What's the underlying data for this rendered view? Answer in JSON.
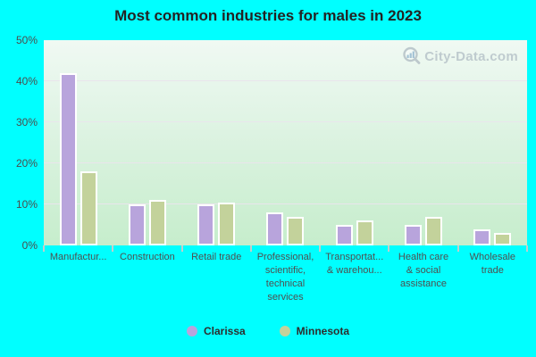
{
  "title": "Most common industries for males in 2023",
  "watermark": "City-Data.com",
  "colors": {
    "background": "#00ffff",
    "plot_gradient_top": "#f0f9f3",
    "plot_gradient_bottom": "#c6edcc",
    "gridline": "#e9e5ec",
    "bar_border": "#ffffff",
    "clarissa": "#b8a4dc",
    "minnesota": "#c3d29b",
    "axis_text": "#4c4c4c",
    "title_text": "#232323",
    "watermark_text": "#b3bfc6"
  },
  "legend": {
    "position": "bottom-center",
    "items": [
      {
        "label": "Clarissa",
        "color": "#b8a4dc"
      },
      {
        "label": "Minnesota",
        "color": "#c3d29b"
      }
    ]
  },
  "chart_data": {
    "type": "bar",
    "title": "Most common industries for males in 2023",
    "xlabel": "",
    "ylabel": "",
    "ylim": [
      0,
      50
    ],
    "grid": true,
    "legend_position": "bottom",
    "y_ticks": [
      {
        "label": "0%",
        "value": 0
      },
      {
        "label": "10%",
        "value": 10
      },
      {
        "label": "20%",
        "value": 20
      },
      {
        "label": "30%",
        "value": 30
      },
      {
        "label": "40%",
        "value": 40
      },
      {
        "label": "50%",
        "value": 50
      }
    ],
    "categories": [
      "Manufactur...",
      "Construction",
      "Retail trade",
      "Professional, scientific, technical services",
      "Transportat... & warehou...",
      "Health care & social assistance",
      "Wholesale trade"
    ],
    "category_display_lines": [
      [
        "Manufactur..."
      ],
      [
        "Construction"
      ],
      [
        "Retail trade"
      ],
      [
        "Professional,",
        "scientific,",
        "technical",
        "services"
      ],
      [
        "Transportat...",
        "& warehou..."
      ],
      [
        "Health care",
        "& social",
        "assistance"
      ],
      [
        "Wholesale",
        "trade"
      ]
    ],
    "series": [
      {
        "name": "Clarissa",
        "color": "#b8a4dc",
        "values": [
          42,
          10,
          10,
          8,
          5,
          5,
          4
        ]
      },
      {
        "name": "Minnesota",
        "color": "#c3d29b",
        "values": [
          18,
          11,
          10.5,
          7,
          6,
          7,
          3
        ]
      }
    ]
  }
}
